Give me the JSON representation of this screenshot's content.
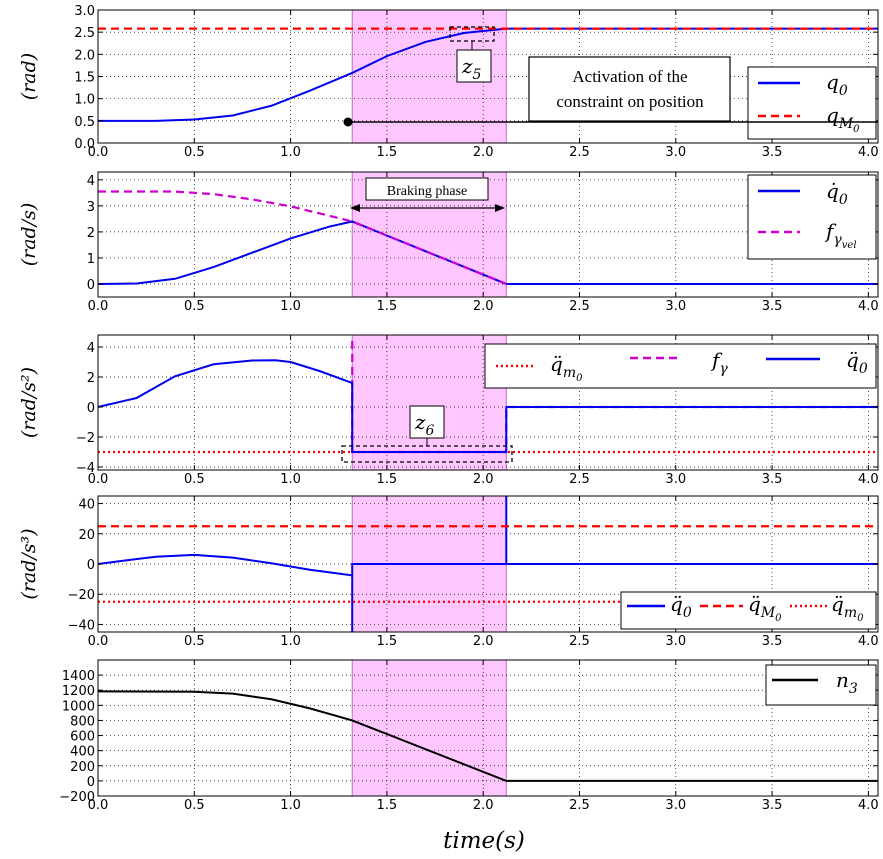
{
  "figure": {
    "x_label": "time(s)",
    "x_ticks": [
      "0.0",
      "0.5",
      "1.0",
      "1.5",
      "2.0",
      "2.5",
      "3.0",
      "3.5",
      "4.0"
    ],
    "shaded_interval": [
      1.32,
      2.12
    ],
    "colors": {
      "blue": "#0000ee",
      "red": "#ff0000",
      "magenta": "#cc00cc",
      "black": "#000000",
      "shade": "#ffb3ff"
    }
  },
  "chart_data": [
    {
      "type": "line",
      "ylabel": "(rad)",
      "xlim": [
        0,
        4.05
      ],
      "ylim": [
        0,
        3.0
      ],
      "ytick_labels": [
        "0.0",
        "0.5",
        "1.0",
        "1.5",
        "2.0",
        "2.5",
        "3.0"
      ],
      "grid": true,
      "legend_placement": "right",
      "series": [
        {
          "name": "q0",
          "style": "solid",
          "color": "blue",
          "x": [
            0,
            0.3,
            0.5,
            0.7,
            0.9,
            1.1,
            1.32,
            1.5,
            1.7,
            1.9,
            2.12,
            4.05
          ],
          "y": [
            0.5,
            0.5,
            0.53,
            0.62,
            0.84,
            1.18,
            1.58,
            1.96,
            2.28,
            2.48,
            2.58,
            2.58
          ]
        },
        {
          "name": "qM0",
          "style": "dashed",
          "color": "red",
          "x": [
            0,
            4.05
          ],
          "y": [
            2.58,
            2.58
          ]
        }
      ],
      "legend": [
        {
          "label": "q0",
          "base": "q",
          "sub": "0",
          "style": "solid",
          "color": "blue"
        },
        {
          "label": "qM0",
          "base": "q",
          "sub": "M",
          "subsub": "0",
          "style": "dashed",
          "color": "red"
        }
      ],
      "annotations": {
        "activation_line1": "Activation of the",
        "activation_line2": "constraint on position",
        "zoom_label_base": "z",
        "zoom_label_sub": "5"
      }
    },
    {
      "type": "line",
      "ylabel": "(rad/s)",
      "xlim": [
        0,
        4.05
      ],
      "ylim": [
        -0.5,
        4.3
      ],
      "yticks": [
        0,
        1,
        2,
        3,
        4
      ],
      "ytick_labels": [
        "0",
        "1",
        "2",
        "3",
        "4"
      ],
      "grid": true,
      "legend_placement": "top-right",
      "series": [
        {
          "name": "q̇0",
          "style": "solid",
          "color": "blue",
          "x": [
            0,
            0.2,
            0.4,
            0.6,
            0.8,
            1.0,
            1.2,
            1.32,
            2.12,
            4.05
          ],
          "y": [
            0,
            0.02,
            0.2,
            0.65,
            1.2,
            1.75,
            2.2,
            2.4,
            0,
            0
          ]
        },
        {
          "name": "fγvel",
          "style": "dashed",
          "color": "magenta",
          "x": [
            0,
            0.4,
            0.6,
            0.8,
            1.0,
            1.2,
            1.32,
            2.12
          ],
          "y": [
            3.55,
            3.55,
            3.45,
            3.25,
            2.98,
            2.62,
            2.4,
            0
          ]
        }
      ],
      "legend": [
        {
          "label": "q̇0",
          "base": "q̇",
          "sub": "0",
          "style": "solid",
          "color": "blue"
        },
        {
          "label": "fγvel",
          "base": "f",
          "sub": "γ",
          "subsub": "vel",
          "style": "dashed",
          "color": "magenta"
        }
      ],
      "annotations": {
        "braking_phase": "Braking phase"
      }
    },
    {
      "type": "line",
      "ylabel": "(rad/s²)",
      "xlim": [
        0,
        4.05
      ],
      "ylim": [
        -4.2,
        4.8
      ],
      "yticks": [
        -4,
        -2,
        0,
        2,
        4
      ],
      "ytick_labels": [
        "−4",
        "−2",
        "0",
        "2",
        "4"
      ],
      "grid": true,
      "legend_placement": "top-right",
      "series": [
        {
          "name": "q̈m0",
          "style": "dotted",
          "color": "red",
          "x": [
            0,
            4.05
          ],
          "y": [
            -3,
            -3
          ]
        },
        {
          "name": "fγ",
          "style": "dashed",
          "color": "magenta",
          "x": [
            1.32,
            1.32,
            2.12,
            2.12,
            4.05
          ],
          "y": [
            4.4,
            -3,
            -3,
            0,
            0
          ]
        },
        {
          "name": "q̈0",
          "style": "solid",
          "color": "blue",
          "x": [
            0,
            0.2,
            0.4,
            0.6,
            0.8,
            0.92,
            1.0,
            1.15,
            1.32,
            1.32,
            2.12,
            2.12,
            4.05
          ],
          "y": [
            0,
            0.6,
            2.05,
            2.85,
            3.1,
            3.12,
            3.0,
            2.4,
            1.6,
            -3,
            -3,
            0,
            0
          ]
        }
      ],
      "legend": [
        {
          "label": "q̈m0",
          "base": "q̈",
          "sub": "m",
          "subsub": "0",
          "style": "dotted",
          "color": "red"
        },
        {
          "label": "fγ",
          "base": "f",
          "sub": "γ",
          "style": "dashed",
          "color": "magenta"
        },
        {
          "label": "q̈0",
          "base": "q̈",
          "sub": "0",
          "style": "solid",
          "color": "blue"
        }
      ],
      "annotations": {
        "zoom_label_base": "z",
        "zoom_label_sub": "6"
      }
    },
    {
      "type": "line",
      "ylabel": "(rad/s³)",
      "xlim": [
        0,
        4.05
      ],
      "ylim": [
        -45,
        45
      ],
      "yticks": [
        -40,
        -20,
        0,
        20,
        40
      ],
      "ytick_labels": [
        "−40",
        "−20",
        "0",
        "20",
        "40"
      ],
      "grid": true,
      "legend_placement": "lower-right",
      "series": [
        {
          "name": "q⃛0",
          "style": "solid",
          "color": "blue",
          "x": [
            0,
            0.15,
            0.3,
            0.5,
            0.7,
            0.9,
            1.1,
            1.32,
            1.32,
            1.32,
            2.12,
            2.12,
            2.12,
            4.05
          ],
          "y": [
            0,
            2.5,
            4.8,
            6.0,
            4.2,
            0.5,
            -3.8,
            -7.5,
            -45,
            0,
            0,
            45,
            0,
            0
          ]
        },
        {
          "name": "q⃛M0",
          "style": "dashed",
          "color": "red",
          "x": [
            0,
            4.05
          ],
          "y": [
            25,
            25
          ]
        },
        {
          "name": "q⃛m0",
          "style": "dotted",
          "color": "red",
          "x": [
            0,
            4.05
          ],
          "y": [
            -25,
            -25
          ]
        }
      ],
      "legend": [
        {
          "label": "q⃛0",
          "base": "q̈",
          "sub": "0",
          "style": "solid",
          "color": "blue"
        },
        {
          "label": "q⃛M0",
          "base": "q̈",
          "sub": "M",
          "subsub": "0",
          "style": "dashed",
          "color": "red"
        },
        {
          "label": "q⃛m0",
          "base": "q̈",
          "sub": "m",
          "subsub": "0",
          "style": "dotted",
          "color": "red"
        }
      ]
    },
    {
      "type": "line",
      "ylabel": "",
      "xlim": [
        0,
        4.05
      ],
      "ylim": [
        -200,
        1600
      ],
      "yticks": [
        -200,
        0,
        200,
        400,
        600,
        800,
        1000,
        1200,
        1400
      ],
      "ytick_labels": [
        "−200",
        "0",
        "200",
        "400",
        "600",
        "800",
        "1000",
        "1200",
        "1400"
      ],
      "grid": true,
      "legend_placement": "top-right",
      "series": [
        {
          "name": "n3",
          "style": "solid",
          "color": "black",
          "x": [
            0,
            0.5,
            0.7,
            0.9,
            1.1,
            1.32,
            2.12,
            4.05
          ],
          "y": [
            1185,
            1180,
            1155,
            1080,
            960,
            800,
            0,
            0
          ]
        }
      ],
      "legend": [
        {
          "label": "n3",
          "base": "n",
          "sub": "3",
          "style": "solid",
          "color": "black"
        }
      ]
    }
  ]
}
